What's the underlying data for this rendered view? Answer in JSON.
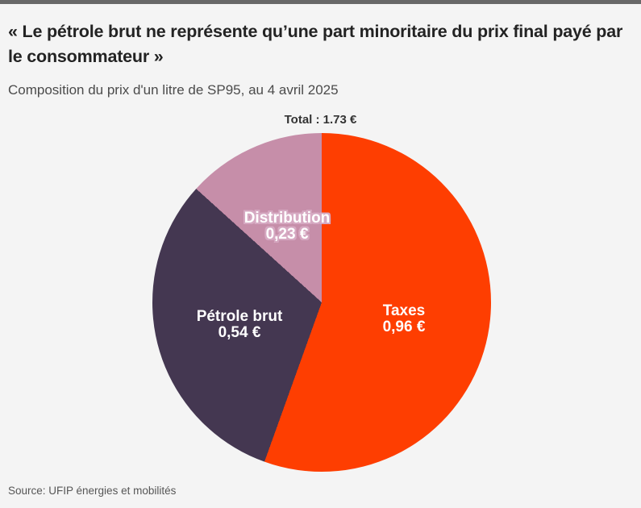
{
  "header": {
    "title": "« Le pétrole brut ne représente qu’une part minoritaire du prix final payé par le consommateur »",
    "subtitle": "Composition du prix d'un litre de SP95, au 4 avril 2025"
  },
  "chart_data": {
    "type": "pie",
    "title": "Composition du prix d'un litre de SP95, au 4 avril 2025",
    "total_label": "Total : 1.73 €",
    "total_value": 1.73,
    "start_angle_deg": 0,
    "direction": "clockwise",
    "slices": [
      {
        "label": "Taxes",
        "value": 0.96,
        "value_label": "0,96 €",
        "color": "#fe3e01"
      },
      {
        "label": "Pétrole brut",
        "value": 0.54,
        "value_label": "0,54 €",
        "color": "#443751"
      },
      {
        "label": "Distribution",
        "value": 0.23,
        "value_label": "0,23 €",
        "color": "#c68ea9"
      }
    ]
  },
  "source": {
    "text": "Source: UFIP énergies et mobilités"
  },
  "colors": {
    "background": "#f4f4f4",
    "top_bar": "#686868",
    "title_text": "#232323",
    "subtitle_text": "#4b4b4b",
    "source_text": "#565656",
    "slice_label_text": "#ffffff",
    "distribution_label_halo": "#d6a9c2"
  }
}
